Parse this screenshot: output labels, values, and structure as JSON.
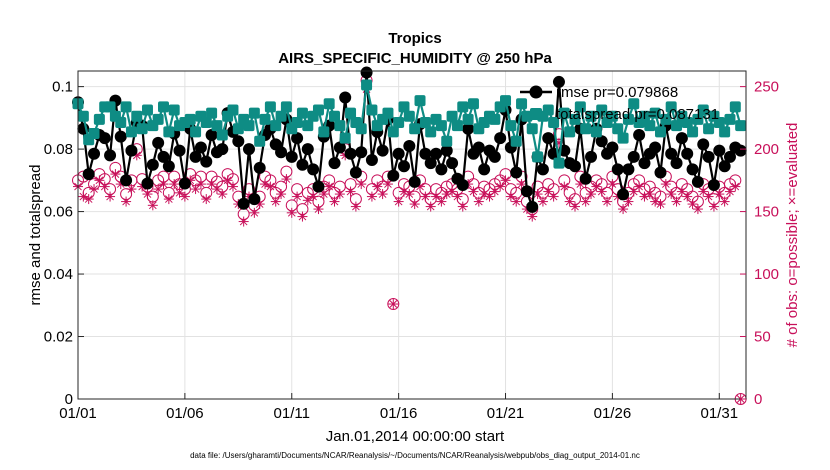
{
  "chart_data": {
    "type": "line",
    "title": "Tropics",
    "subtitle": "AIRS_SPECIFIC_HUMIDITY @ 250 hPa",
    "xlabel": "Jan.01,2014 00:00:00 start",
    "ylabel": "rmse and totalspread",
    "ylabel_right": "# of obs: o=possible; ×=evaluated",
    "x_ticks": [
      "01/01",
      "01/06",
      "01/11",
      "01/16",
      "01/21",
      "01/26",
      "01/31"
    ],
    "x_tick_days": [
      0,
      5,
      10,
      15,
      20,
      25,
      30
    ],
    "xlim_days": [
      0,
      31.25
    ],
    "y_ticks": [
      "0",
      "0.02",
      "0.04",
      "0.06",
      "0.08",
      "0.1"
    ],
    "ylim": [
      0,
      0.105
    ],
    "y_right_ticks": [
      "0",
      "50",
      "100",
      "150",
      "200",
      "250"
    ],
    "ylim_right": [
      0,
      262.5
    ],
    "legend": [
      "rmse pr=0.079868",
      "totalspread pr=0.087131"
    ],
    "legend_position": "top-right",
    "grid": true,
    "x_days": [
      0.0,
      0.25,
      0.5,
      0.75,
      1.0,
      1.25,
      1.5,
      1.75,
      2.0,
      2.25,
      2.5,
      2.75,
      3.0,
      3.25,
      3.5,
      3.75,
      4.0,
      4.25,
      4.5,
      4.75,
      5.0,
      5.25,
      5.5,
      5.75,
      6.0,
      6.25,
      6.5,
      6.75,
      7.0,
      7.25,
      7.5,
      7.75,
      8.0,
      8.25,
      8.5,
      8.75,
      9.0,
      9.25,
      9.5,
      9.75,
      10.0,
      10.25,
      10.5,
      10.75,
      11.0,
      11.25,
      11.5,
      11.75,
      12.0,
      12.25,
      12.5,
      12.75,
      13.0,
      13.25,
      13.5,
      13.75,
      14.0,
      14.25,
      14.5,
      14.75,
      15.0,
      15.25,
      15.5,
      15.75,
      16.0,
      16.25,
      16.5,
      16.75,
      17.0,
      17.25,
      17.5,
      17.75,
      18.0,
      18.25,
      18.5,
      18.75,
      19.0,
      19.25,
      19.5,
      19.75,
      20.0,
      20.25,
      20.5,
      20.75,
      21.0,
      21.25,
      21.5,
      21.75,
      22.0,
      22.25,
      22.5,
      22.75,
      23.0,
      23.25,
      23.5,
      23.75,
      24.0,
      24.25,
      24.5,
      24.75,
      25.0,
      25.25,
      25.5,
      25.75,
      26.0,
      26.25,
      26.5,
      26.75,
      27.0,
      27.25,
      27.5,
      27.75,
      28.0,
      28.25,
      28.5,
      28.75,
      29.0,
      29.25,
      29.5,
      29.75,
      30.0,
      30.25,
      30.5,
      30.75,
      31.0
    ],
    "series": [
      {
        "name": "rmse",
        "color": "#000000",
        "axis": "left",
        "values": [
          0.095,
          0.0865,
          0.072,
          0.0785,
          0.0845,
          0.0835,
          0.078,
          0.0955,
          0.084,
          0.07,
          0.0795,
          0.0885,
          0.0875,
          0.069,
          0.075,
          0.082,
          0.0775,
          0.0745,
          0.085,
          0.0795,
          0.069,
          0.0865,
          0.0775,
          0.0805,
          0.076,
          0.0845,
          0.079,
          0.08,
          0.0915,
          0.0855,
          0.0825,
          0.0625,
          0.08,
          0.064,
          0.074,
          0.0845,
          0.0865,
          0.0815,
          0.079,
          0.0895,
          0.0775,
          0.0835,
          0.075,
          0.08,
          0.0735,
          0.068,
          0.084,
          0.0875,
          0.0755,
          0.0805,
          0.0965,
          0.0785,
          0.0725,
          0.079,
          0.1045,
          0.0765,
          0.0855,
          0.0795,
          0.0895,
          0.0715,
          0.0785,
          0.0745,
          0.081,
          0.0695,
          0.088,
          0.0785,
          0.0755,
          0.0785,
          0.0735,
          0.0795,
          0.0755,
          0.0705,
          0.0685,
          0.0865,
          0.0785,
          0.0805,
          0.0735,
          0.0795,
          0.0775,
          0.0835,
          0.0925,
          0.0805,
          0.0725,
          0.0895,
          0.0665,
          0.0615,
          0.0775,
          0.0735,
          0.0835,
          0.0785,
          0.1015,
          0.0795,
          0.0755,
          0.0745,
          0.0865,
          0.0705,
          0.0775,
          0.0865,
          0.0825,
          0.0785,
          0.0805,
          0.0735,
          0.0655,
          0.0735,
          0.0775,
          0.0845,
          0.0755,
          0.0785,
          0.0805,
          0.0725,
          0.0875,
          0.0785,
          0.0755,
          0.0835,
          0.0785,
          0.0735,
          0.0695,
          0.0815,
          0.0775,
          0.0685,
          0.0795,
          0.0745,
          0.0775,
          0.0805,
          0.0795
        ]
      },
      {
        "name": "totalspread",
        "color": "#0e8c84",
        "axis": "left",
        "values": [
          0.0945,
          0.0905,
          0.083,
          0.085,
          0.0895,
          0.0935,
          0.0935,
          0.0905,
          0.0885,
          0.0935,
          0.0855,
          0.0905,
          0.0865,
          0.0925,
          0.0875,
          0.0895,
          0.0935,
          0.0855,
          0.0925,
          0.0875,
          0.0885,
          0.0895,
          0.0855,
          0.0905,
          0.0885,
          0.0915,
          0.0875,
          0.0845,
          0.0905,
          0.0925,
          0.0865,
          0.0895,
          0.0875,
          0.0915,
          0.0825,
          0.0895,
          0.0935,
          0.0875,
          0.0905,
          0.0935,
          0.0865,
          0.0885,
          0.0915,
          0.0875,
          0.0905,
          0.0925,
          0.0855,
          0.0945,
          0.0905,
          0.0875,
          0.0835,
          0.0915,
          0.0885,
          0.0865,
          0.1005,
          0.0925,
          0.0875,
          0.0895,
          0.0915,
          0.0855,
          0.0885,
          0.0935,
          0.0905,
          0.0865,
          0.0955,
          0.0885,
          0.0855,
          0.0895,
          0.0875,
          0.0825,
          0.0905,
          0.0875,
          0.0935,
          0.0895,
          0.0945,
          0.0865,
          0.0885,
          0.0905,
          0.0895,
          0.0935,
          0.0955,
          0.0875,
          0.0825,
          0.0945,
          0.0905,
          0.0865,
          0.0775,
          0.0905,
          0.0925,
          0.0885,
          0.0755,
          0.0915,
          0.0855,
          0.0895,
          0.0935,
          0.0865,
          0.0905,
          0.0855,
          0.0925,
          0.0885,
          0.0905,
          0.0865,
          0.0835,
          0.0895,
          0.0945,
          0.0885,
          0.0905,
          0.0875,
          0.0915,
          0.0855,
          0.0895,
          0.0935,
          0.0875,
          0.0905,
          0.0885,
          0.0855,
          0.0895,
          0.0925,
          0.0865,
          0.0905,
          0.0885,
          0.0855,
          0.0895,
          0.0935,
          0.0875
        ]
      },
      {
        "name": "obs possible",
        "color": "#c8105a",
        "axis": "right",
        "values": [
          175,
          178,
          165,
          172,
          180,
          176,
          168,
          185,
          178,
          164,
          175,
          200,
          176,
          170,
          162,
          175,
          178,
          165,
          178,
          172,
          168,
          180,
          175,
          178,
          165,
          178,
          174,
          170,
          180,
          176,
          162,
          148,
          168,
          155,
          162,
          178,
          175,
          165,
          170,
          182,
          155,
          168,
          152,
          165,
          168,
          158,
          170,
          175,
          165,
          170,
          200,
          172,
          160,
          178,
          255,
          168,
          175,
          170,
          178,
          76,
          165,
          172,
          170,
          162,
          175,
          168,
          160,
          168,
          165,
          170,
          172,
          168,
          160,
          178,
          172,
          165,
          170,
          168,
          172,
          175,
          180,
          168,
          165,
          178,
          158,
          152,
          170,
          165,
          172,
          168,
          212,
          175,
          165,
          160,
          178,
          165,
          170,
          175,
          172,
          165,
          178,
          168,
          158,
          165,
          172,
          175,
          168,
          170,
          165,
          162,
          178,
          170,
          165,
          172,
          168,
          162,
          158,
          172,
          168,
          160,
          170,
          165,
          172,
          175,
          0
        ]
      },
      {
        "name": "obs evaluated",
        "color": "#c8105a",
        "axis": "right",
        "values": [
          170,
          162,
          160,
          168,
          175,
          170,
          162,
          180,
          172,
          158,
          168,
          195,
          170,
          164,
          155,
          168,
          172,
          160,
          172,
          165,
          162,
          175,
          168,
          172,
          160,
          172,
          168,
          164,
          175,
          170,
          156,
          142,
          162,
          149,
          156,
          172,
          170,
          158,
          164,
          176,
          149,
          162,
          146,
          159,
          162,
          152,
          164,
          170,
          158,
          164,
          195,
          166,
          154,
          172,
          248,
          162,
          170,
          164,
          172,
          76,
          158,
          166,
          164,
          156,
          170,
          162,
          154,
          162,
          158,
          164,
          166,
          162,
          154,
          172,
          166,
          158,
          164,
          162,
          166,
          170,
          175,
          162,
          158,
          172,
          152,
          146,
          164,
          158,
          166,
          162,
          205,
          170,
          158,
          154,
          172,
          158,
          164,
          170,
          166,
          158,
          172,
          162,
          152,
          158,
          166,
          170,
          162,
          164,
          158,
          156,
          172,
          164,
          158,
          166,
          162,
          156,
          152,
          166,
          162,
          154,
          164,
          158,
          166,
          170,
          0
        ]
      }
    ]
  },
  "footer": "data file: /Users/gharamti/Documents/NCAR/Reanalysis/~/Documents/NCAR/Reanalysis/webpub/obs_diag_output_2014-01.nc"
}
